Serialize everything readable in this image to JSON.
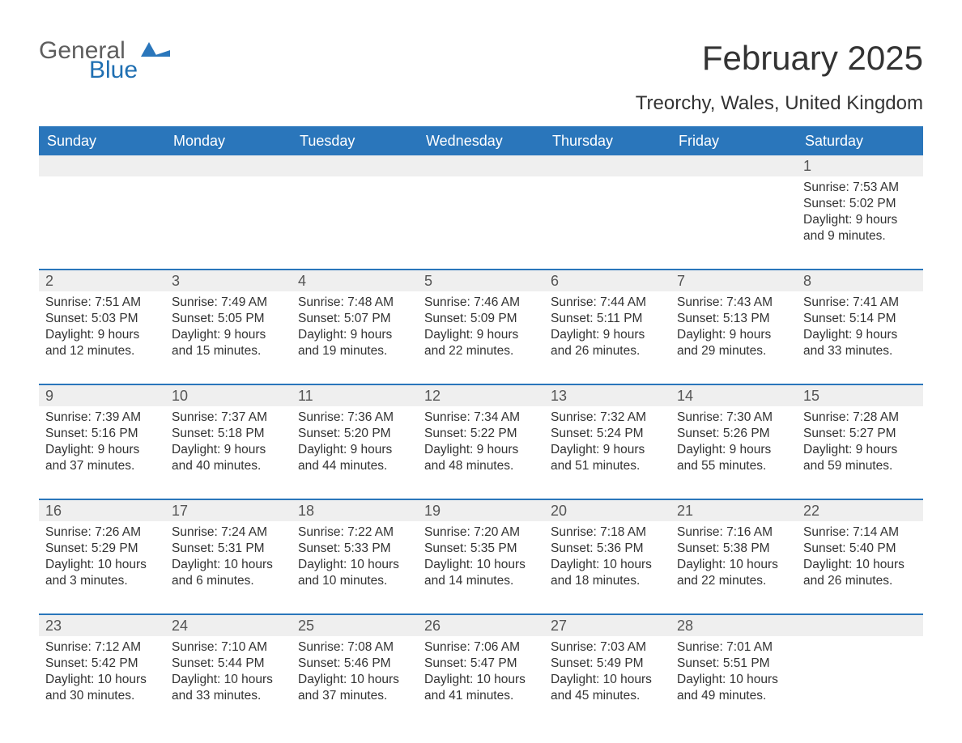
{
  "brand": {
    "word1": "General",
    "word2": "Blue",
    "shape_color": "#2a76bb"
  },
  "title": "February 2025",
  "location": "Treorchy, Wales, United Kingdom",
  "colors": {
    "header_bg": "#2a76bb",
    "header_text": "#ffffff",
    "daynum_bg": "#efefef",
    "body_text": "#333333",
    "page_bg": "#ffffff"
  },
  "weekdays": [
    "Sunday",
    "Monday",
    "Tuesday",
    "Wednesday",
    "Thursday",
    "Friday",
    "Saturday"
  ],
  "weeks": [
    [
      null,
      null,
      null,
      null,
      null,
      null,
      {
        "n": "1",
        "sr": "Sunrise: 7:53 AM",
        "ss": "Sunset: 5:02 PM",
        "d1": "Daylight: 9 hours",
        "d2": "and 9 minutes."
      }
    ],
    [
      {
        "n": "2",
        "sr": "Sunrise: 7:51 AM",
        "ss": "Sunset: 5:03 PM",
        "d1": "Daylight: 9 hours",
        "d2": "and 12 minutes."
      },
      {
        "n": "3",
        "sr": "Sunrise: 7:49 AM",
        "ss": "Sunset: 5:05 PM",
        "d1": "Daylight: 9 hours",
        "d2": "and 15 minutes."
      },
      {
        "n": "4",
        "sr": "Sunrise: 7:48 AM",
        "ss": "Sunset: 5:07 PM",
        "d1": "Daylight: 9 hours",
        "d2": "and 19 minutes."
      },
      {
        "n": "5",
        "sr": "Sunrise: 7:46 AM",
        "ss": "Sunset: 5:09 PM",
        "d1": "Daylight: 9 hours",
        "d2": "and 22 minutes."
      },
      {
        "n": "6",
        "sr": "Sunrise: 7:44 AM",
        "ss": "Sunset: 5:11 PM",
        "d1": "Daylight: 9 hours",
        "d2": "and 26 minutes."
      },
      {
        "n": "7",
        "sr": "Sunrise: 7:43 AM",
        "ss": "Sunset: 5:13 PM",
        "d1": "Daylight: 9 hours",
        "d2": "and 29 minutes."
      },
      {
        "n": "8",
        "sr": "Sunrise: 7:41 AM",
        "ss": "Sunset: 5:14 PM",
        "d1": "Daylight: 9 hours",
        "d2": "and 33 minutes."
      }
    ],
    [
      {
        "n": "9",
        "sr": "Sunrise: 7:39 AM",
        "ss": "Sunset: 5:16 PM",
        "d1": "Daylight: 9 hours",
        "d2": "and 37 minutes."
      },
      {
        "n": "10",
        "sr": "Sunrise: 7:37 AM",
        "ss": "Sunset: 5:18 PM",
        "d1": "Daylight: 9 hours",
        "d2": "and 40 minutes."
      },
      {
        "n": "11",
        "sr": "Sunrise: 7:36 AM",
        "ss": "Sunset: 5:20 PM",
        "d1": "Daylight: 9 hours",
        "d2": "and 44 minutes."
      },
      {
        "n": "12",
        "sr": "Sunrise: 7:34 AM",
        "ss": "Sunset: 5:22 PM",
        "d1": "Daylight: 9 hours",
        "d2": "and 48 minutes."
      },
      {
        "n": "13",
        "sr": "Sunrise: 7:32 AM",
        "ss": "Sunset: 5:24 PM",
        "d1": "Daylight: 9 hours",
        "d2": "and 51 minutes."
      },
      {
        "n": "14",
        "sr": "Sunrise: 7:30 AM",
        "ss": "Sunset: 5:26 PM",
        "d1": "Daylight: 9 hours",
        "d2": "and 55 minutes."
      },
      {
        "n": "15",
        "sr": "Sunrise: 7:28 AM",
        "ss": "Sunset: 5:27 PM",
        "d1": "Daylight: 9 hours",
        "d2": "and 59 minutes."
      }
    ],
    [
      {
        "n": "16",
        "sr": "Sunrise: 7:26 AM",
        "ss": "Sunset: 5:29 PM",
        "d1": "Daylight: 10 hours",
        "d2": "and 3 minutes."
      },
      {
        "n": "17",
        "sr": "Sunrise: 7:24 AM",
        "ss": "Sunset: 5:31 PM",
        "d1": "Daylight: 10 hours",
        "d2": "and 6 minutes."
      },
      {
        "n": "18",
        "sr": "Sunrise: 7:22 AM",
        "ss": "Sunset: 5:33 PM",
        "d1": "Daylight: 10 hours",
        "d2": "and 10 minutes."
      },
      {
        "n": "19",
        "sr": "Sunrise: 7:20 AM",
        "ss": "Sunset: 5:35 PM",
        "d1": "Daylight: 10 hours",
        "d2": "and 14 minutes."
      },
      {
        "n": "20",
        "sr": "Sunrise: 7:18 AM",
        "ss": "Sunset: 5:36 PM",
        "d1": "Daylight: 10 hours",
        "d2": "and 18 minutes."
      },
      {
        "n": "21",
        "sr": "Sunrise: 7:16 AM",
        "ss": "Sunset: 5:38 PM",
        "d1": "Daylight: 10 hours",
        "d2": "and 22 minutes."
      },
      {
        "n": "22",
        "sr": "Sunrise: 7:14 AM",
        "ss": "Sunset: 5:40 PM",
        "d1": "Daylight: 10 hours",
        "d2": "and 26 minutes."
      }
    ],
    [
      {
        "n": "23",
        "sr": "Sunrise: 7:12 AM",
        "ss": "Sunset: 5:42 PM",
        "d1": "Daylight: 10 hours",
        "d2": "and 30 minutes."
      },
      {
        "n": "24",
        "sr": "Sunrise: 7:10 AM",
        "ss": "Sunset: 5:44 PM",
        "d1": "Daylight: 10 hours",
        "d2": "and 33 minutes."
      },
      {
        "n": "25",
        "sr": "Sunrise: 7:08 AM",
        "ss": "Sunset: 5:46 PM",
        "d1": "Daylight: 10 hours",
        "d2": "and 37 minutes."
      },
      {
        "n": "26",
        "sr": "Sunrise: 7:06 AM",
        "ss": "Sunset: 5:47 PM",
        "d1": "Daylight: 10 hours",
        "d2": "and 41 minutes."
      },
      {
        "n": "27",
        "sr": "Sunrise: 7:03 AM",
        "ss": "Sunset: 5:49 PM",
        "d1": "Daylight: 10 hours",
        "d2": "and 45 minutes."
      },
      {
        "n": "28",
        "sr": "Sunrise: 7:01 AM",
        "ss": "Sunset: 5:51 PM",
        "d1": "Daylight: 10 hours",
        "d2": "and 49 minutes."
      },
      null
    ]
  ]
}
